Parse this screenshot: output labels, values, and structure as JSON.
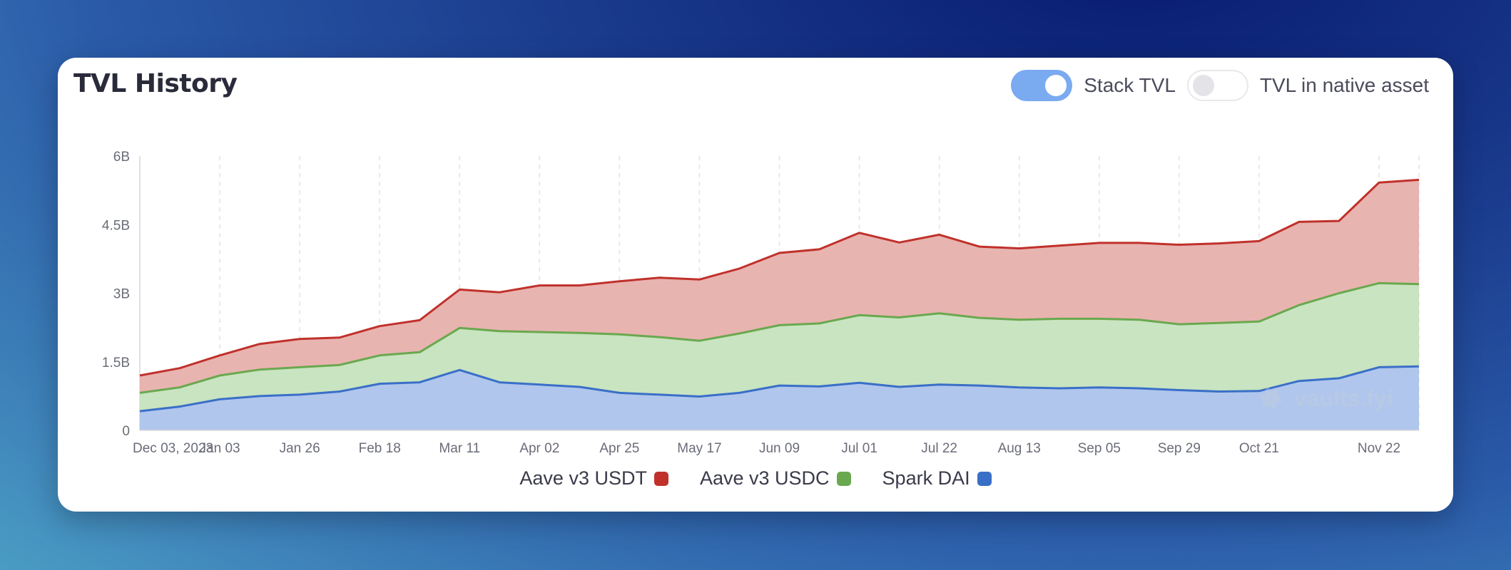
{
  "card": {
    "title": "TVL History"
  },
  "toggles": [
    {
      "label": "Stack TVL",
      "on": true
    },
    {
      "label": "TVL in native asset",
      "on": false
    }
  ],
  "watermark": "vaults.fyi",
  "colors": {
    "usdt_line": "#c0312b",
    "usdt_fill": "#e8b4b0",
    "usdc_line": "#6aa84f",
    "usdc_fill": "#c8e4c0",
    "dai_line": "#3a6fc8",
    "dai_fill": "#b0c6ec"
  },
  "chart_data": {
    "type": "area",
    "stacked": true,
    "x_ticks": [
      "Dec 03, 2023",
      "Jan 03",
      "Jan 26",
      "Feb 18",
      "Mar 11",
      "Apr 02",
      "Apr 25",
      "May 17",
      "Jun 09",
      "Jul 01",
      "Jul 22",
      "Aug 13",
      "Sep 05",
      "Sep 29",
      "Oct 21",
      "Nov 22"
    ],
    "y_ticks": [
      "0",
      "1.5B",
      "3B",
      "4.5B",
      "6B"
    ],
    "ylim": [
      0,
      6
    ],
    "y_unit": "B",
    "grid": "vertical dashed",
    "legend_position": "bottom",
    "x": [
      "Dec 03, 2023",
      "Dec 18",
      "Jan 03",
      "Jan 14",
      "Jan 26",
      "Feb 06",
      "Feb 18",
      "Mar 01",
      "Mar 11",
      "Mar 21",
      "Apr 02",
      "Apr 13",
      "Apr 25",
      "May 06",
      "May 17",
      "May 28",
      "Jun 09",
      "Jun 20",
      "Jul 01",
      "Jul 11",
      "Jul 22",
      "Aug 02",
      "Aug 13",
      "Aug 24",
      "Sep 05",
      "Sep 17",
      "Sep 29",
      "Oct 10",
      "Oct 21",
      "Nov 01",
      "Nov 12",
      "Nov 22",
      "Dec 01"
    ],
    "series": [
      {
        "name": "Spark DAI",
        "values": [
          0.42,
          0.52,
          0.68,
          0.75,
          0.78,
          0.85,
          1.02,
          1.05,
          1.32,
          1.05,
          1.0,
          0.95,
          0.82,
          0.78,
          0.74,
          0.82,
          0.98,
          0.96,
          1.04,
          0.95,
          1.0,
          0.98,
          0.94,
          0.92,
          0.94,
          0.92,
          0.88,
          0.85,
          0.86,
          1.08,
          1.14,
          1.38,
          1.4
        ]
      },
      {
        "name": "Aave v3 USDC",
        "values": [
          0.4,
          0.42,
          0.52,
          0.58,
          0.6,
          0.58,
          0.62,
          0.66,
          0.92,
          1.12,
          1.15,
          1.18,
          1.28,
          1.26,
          1.22,
          1.3,
          1.32,
          1.38,
          1.48,
          1.52,
          1.56,
          1.48,
          1.48,
          1.52,
          1.5,
          1.5,
          1.44,
          1.5,
          1.52,
          1.66,
          1.86,
          1.84,
          1.8
        ]
      },
      {
        "name": "Aave v3 USDT",
        "values": [
          0.38,
          0.42,
          0.44,
          0.56,
          0.62,
          0.6,
          0.64,
          0.7,
          0.84,
          0.85,
          1.02,
          1.04,
          1.16,
          1.3,
          1.34,
          1.42,
          1.58,
          1.62,
          1.8,
          1.64,
          1.72,
          1.56,
          1.56,
          1.6,
          1.66,
          1.68,
          1.74,
          1.74,
          1.76,
          1.82,
          1.58,
          2.2,
          2.28
        ]
      }
    ]
  },
  "legend": [
    {
      "label": "Aave v3 USDT",
      "color": "#c0312b"
    },
    {
      "label": "Aave v3 USDC",
      "color": "#6aa84f"
    },
    {
      "label": "Spark DAI",
      "color": "#3a6fc8"
    }
  ]
}
